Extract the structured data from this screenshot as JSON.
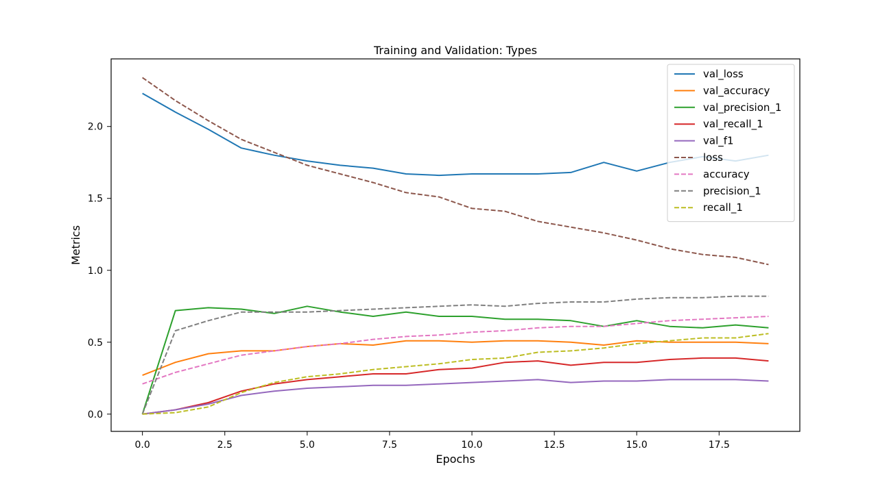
{
  "chart_data": {
    "type": "line",
    "title": "Training and Validation: Types",
    "xlabel": "Epochs",
    "ylabel": "Metrics",
    "xlim": [
      -0.95,
      19.95
    ],
    "ylim": [
      -0.12,
      2.47
    ],
    "xticks": [
      0.0,
      2.5,
      5.0,
      7.5,
      10.0,
      12.5,
      15.0,
      17.5
    ],
    "xtick_labels": [
      "0.0",
      "2.5",
      "5.0",
      "7.5",
      "10.0",
      "12.5",
      "15.0",
      "17.5"
    ],
    "yticks": [
      0.0,
      0.5,
      1.0,
      1.5,
      2.0
    ],
    "ytick_labels": [
      "0.0",
      "0.5",
      "1.0",
      "1.5",
      "2.0"
    ],
    "grid": false,
    "legend_position": "top-right",
    "x": [
      0,
      1,
      2,
      3,
      4,
      5,
      6,
      7,
      8,
      9,
      10,
      11,
      12,
      13,
      14,
      15,
      16,
      17,
      18,
      19
    ],
    "series": [
      {
        "name": "val_loss",
        "color": "#1f77b4",
        "dash": "solid",
        "values": [
          2.23,
          2.1,
          1.98,
          1.85,
          1.8,
          1.76,
          1.73,
          1.71,
          1.67,
          1.66,
          1.67,
          1.67,
          1.67,
          1.68,
          1.75,
          1.69,
          1.75,
          1.79,
          1.76,
          1.8
        ]
      },
      {
        "name": "val_accuracy",
        "color": "#ff7f0e",
        "dash": "solid",
        "values": [
          0.27,
          0.36,
          0.42,
          0.44,
          0.44,
          0.47,
          0.49,
          0.48,
          0.51,
          0.51,
          0.5,
          0.51,
          0.51,
          0.5,
          0.48,
          0.51,
          0.5,
          0.5,
          0.5,
          0.49
        ]
      },
      {
        "name": "val_precision_1",
        "color": "#2ca02c",
        "dash": "solid",
        "values": [
          0.0,
          0.72,
          0.74,
          0.73,
          0.7,
          0.75,
          0.71,
          0.68,
          0.71,
          0.68,
          0.68,
          0.66,
          0.66,
          0.65,
          0.61,
          0.65,
          0.61,
          0.6,
          0.62,
          0.6
        ]
      },
      {
        "name": "val_recall_1",
        "color": "#d62728",
        "dash": "solid",
        "values": [
          0.0,
          0.03,
          0.08,
          0.16,
          0.21,
          0.24,
          0.26,
          0.28,
          0.28,
          0.31,
          0.32,
          0.36,
          0.37,
          0.34,
          0.36,
          0.36,
          0.38,
          0.39,
          0.39,
          0.37
        ]
      },
      {
        "name": "val_f1",
        "color": "#9467bd",
        "dash": "solid",
        "values": [
          0.0,
          0.03,
          0.07,
          0.13,
          0.16,
          0.18,
          0.19,
          0.2,
          0.2,
          0.21,
          0.22,
          0.23,
          0.24,
          0.22,
          0.23,
          0.23,
          0.24,
          0.24,
          0.24,
          0.23
        ]
      },
      {
        "name": "loss",
        "color": "#8c564b",
        "dash": "dashed",
        "values": [
          2.34,
          2.18,
          2.04,
          1.91,
          1.82,
          1.73,
          1.67,
          1.61,
          1.54,
          1.51,
          1.43,
          1.41,
          1.34,
          1.3,
          1.26,
          1.21,
          1.15,
          1.11,
          1.09,
          1.04
        ]
      },
      {
        "name": "accuracy",
        "color": "#e377c2",
        "dash": "dashed",
        "values": [
          0.21,
          0.29,
          0.35,
          0.41,
          0.44,
          0.47,
          0.49,
          0.52,
          0.54,
          0.55,
          0.57,
          0.58,
          0.6,
          0.61,
          0.61,
          0.63,
          0.65,
          0.66,
          0.67,
          0.68
        ]
      },
      {
        "name": "precision_1",
        "color": "#7f7f7f",
        "dash": "dashed",
        "values": [
          0.0,
          0.58,
          0.65,
          0.71,
          0.71,
          0.71,
          0.72,
          0.73,
          0.74,
          0.75,
          0.76,
          0.75,
          0.77,
          0.78,
          0.78,
          0.8,
          0.81,
          0.81,
          0.82,
          0.82
        ]
      },
      {
        "name": "recall_1",
        "color": "#bcbd22",
        "dash": "dashed",
        "values": [
          0.0,
          0.01,
          0.05,
          0.15,
          0.22,
          0.26,
          0.28,
          0.31,
          0.33,
          0.35,
          0.38,
          0.39,
          0.43,
          0.44,
          0.46,
          0.49,
          0.51,
          0.53,
          0.53,
          0.56
        ]
      }
    ]
  }
}
